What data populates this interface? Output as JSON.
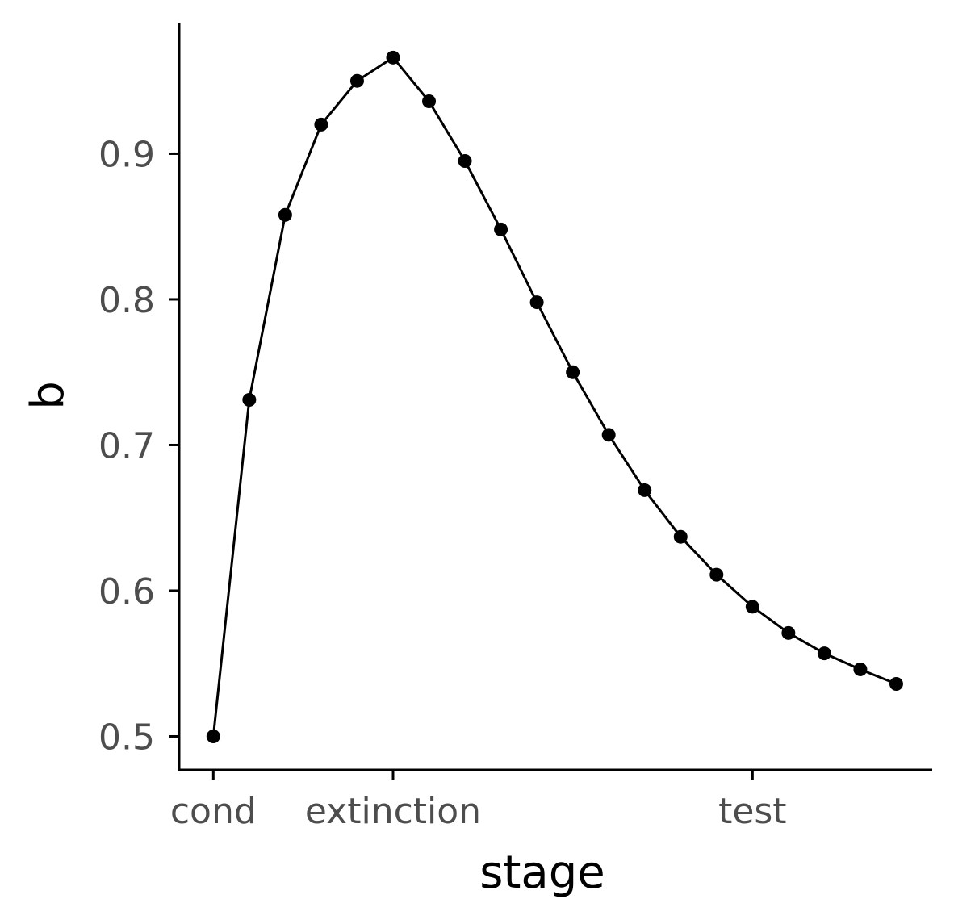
{
  "chart_data": {
    "type": "line",
    "xlabel": "stage",
    "ylabel": "b",
    "x_tick_labels": [
      {
        "label": "cond",
        "x": 0
      },
      {
        "label": "extinction",
        "x": 5
      },
      {
        "label": "test",
        "x": 15
      }
    ],
    "y_ticks": [
      0.5,
      0.6,
      0.7,
      0.8,
      0.9
    ],
    "y_tick_labels": [
      "0.5",
      "0.6",
      "0.7",
      "0.8",
      "0.9"
    ],
    "xlim": [
      -0.95,
      20.0
    ],
    "ylim": [
      0.477,
      0.99
    ],
    "grid": false,
    "legend": "none",
    "series": [
      {
        "x": [
          0,
          1,
          2,
          3,
          4,
          5,
          6,
          7,
          8,
          9,
          10,
          11,
          12,
          13,
          14,
          15,
          16,
          17,
          18,
          19
        ],
        "values": [
          0.5,
          0.731,
          0.858,
          0.92,
          0.95,
          0.966,
          0.936,
          0.895,
          0.848,
          0.798,
          0.75,
          0.707,
          0.669,
          0.637,
          0.611,
          0.589,
          0.571,
          0.557,
          0.546,
          0.536
        ],
        "color": "#000000"
      }
    ]
  }
}
